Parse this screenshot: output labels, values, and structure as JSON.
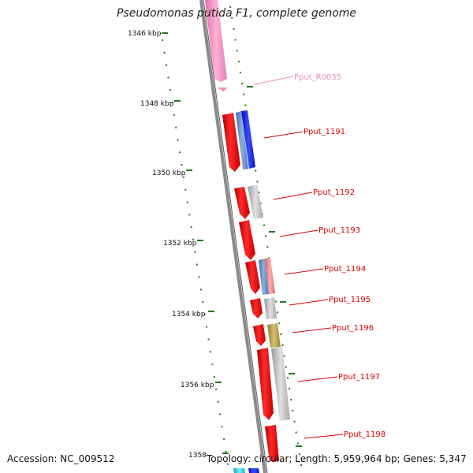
{
  "title": "Pseudomonas putida F1, complete genome",
  "accession": "Accession: NC_009512",
  "summary": "Topology: circular; Length: 5,959,964 bp; Genes: 5,347",
  "scale": {
    "ticks": [
      "1346 kbp",
      "1348 kbp",
      "1350 kbp",
      "1352 kbp",
      "1354 kbp",
      "1356 kbp",
      "1358"
    ]
  },
  "genes": [
    {
      "label": "Pput_R0035",
      "color": "#f08cc0"
    },
    {
      "label": "Pput_1191",
      "color": "#dd0000"
    },
    {
      "label": "Pput_1192",
      "color": "#dd0000"
    },
    {
      "label": "Pput_1193",
      "color": "#dd0000"
    },
    {
      "label": "Pput_1194",
      "color": "#dd0000"
    },
    {
      "label": "Pput_1195",
      "color": "#dd0000"
    },
    {
      "label": "Pput_1196",
      "color": "#dd0000"
    },
    {
      "label": "Pput_1197",
      "color": "#dd0000"
    },
    {
      "label": "Pput_1198",
      "color": "#dd0000"
    }
  ],
  "colors": {
    "backbone": "#808080",
    "tick": "#1f7a1f",
    "cds": "#ee1111",
    "rna": "#f08cc0",
    "cog_blue": "#2030e0",
    "cog_steel": "#5a86c4",
    "cog_gray": "#b8b8b8",
    "cog_pink": "#f08080",
    "cog_olive": "#b8a050",
    "cog_cyan": "#40d0e0"
  }
}
